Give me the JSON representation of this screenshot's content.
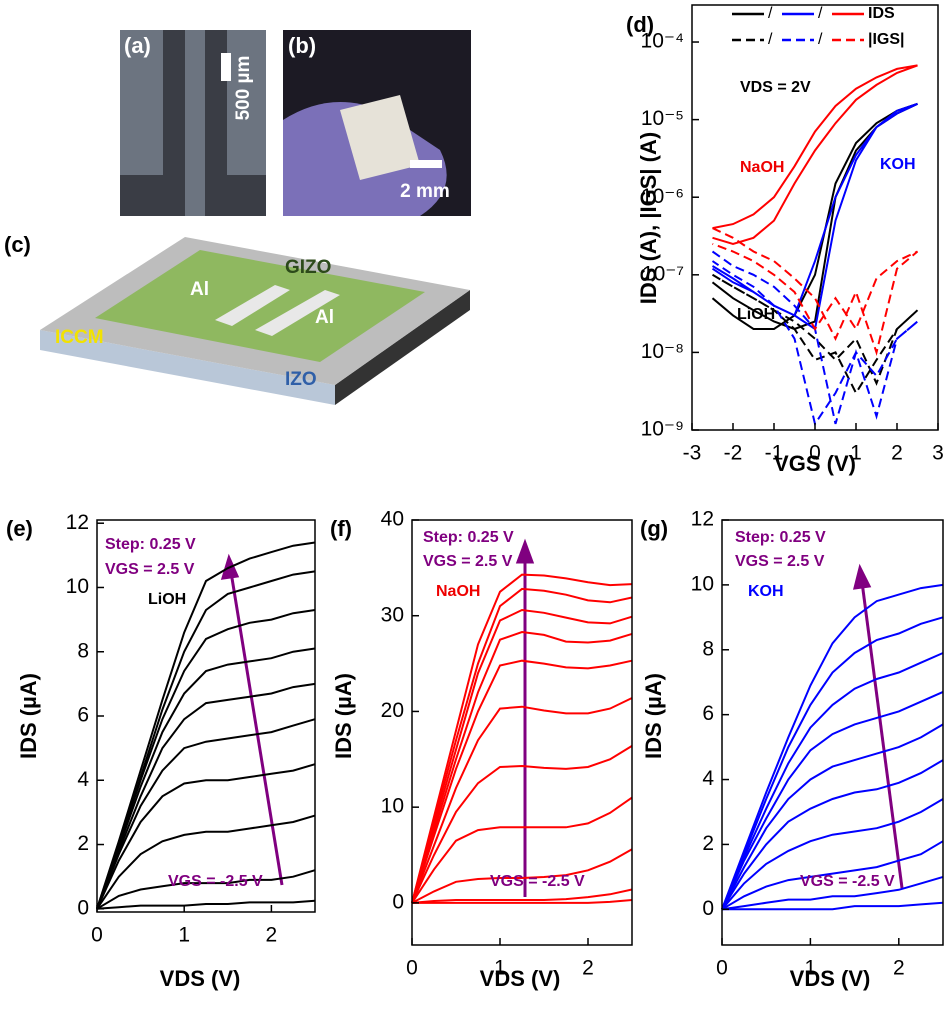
{
  "images": [
    {
      "label": "(a)",
      "scale": "500 µm"
    },
    {
      "label": "(b)",
      "scale": "2 mm"
    },
    {
      "label": "(c)",
      "layers": [
        "GIZO",
        "Al",
        "Al",
        "ICCM",
        "IZO"
      ]
    }
  ],
  "chart_data": [
    {
      "type": "line",
      "panel": "(d)",
      "log_y": true,
      "x": [
        -2.5,
        -2,
        -1.5,
        -1,
        -0.5,
        0,
        0.5,
        1,
        1.5,
        2,
        2.5,
        2,
        1.5,
        1,
        0.5,
        0,
        -0.5,
        -1,
        -1.5,
        -2,
        -2.5
      ],
      "xlim": [
        -3,
        3
      ],
      "xticks": [
        -3,
        -2,
        -1,
        0,
        1,
        2,
        3
      ],
      "ylim": [
        1e-09,
        0.0003
      ],
      "yticks": [
        {
          "value": 1e-09,
          "label": "10⁻⁹"
        },
        {
          "value": 1e-08,
          "label": "10⁻⁸"
        },
        {
          "value": 1e-07,
          "label": "10⁻⁷"
        },
        {
          "value": 1e-06,
          "label": "10⁻⁶"
        },
        {
          "value": 1e-05,
          "label": "10⁻⁵"
        },
        {
          "value": 0.0001,
          "label": "10⁻⁴"
        }
      ],
      "xlabel": "VGS (V)",
      "ylabel": "IDS (A), |IGS| (A)",
      "legend_separator": "/",
      "annotations": [
        "VDS = 2V",
        "NaOH",
        "KOH",
        "LiOH"
      ],
      "series": [
        {
          "color": "#000000",
          "dash": false,
          "values": [
            8e-08,
            5e-08,
            3.5e-08,
            2.5e-08,
            2e-08,
            2.5e-08,
            1e-06,
            4e-06,
            8e-06,
            1.2e-05,
            1.6e-05,
            1.3e-05,
            9e-06,
            5e-06,
            1.5e-06,
            1e-07,
            3e-08,
            2e-08,
            2e-08,
            3e-08,
            5e-08
          ]
        },
        {
          "color": "#0000ff",
          "dash": false,
          "values": [
            1.3e-07,
            9e-08,
            6e-08,
            4e-08,
            3e-08,
            2e-08,
            5e-07,
            3e-06,
            8e-06,
            1.2e-05,
            1.6e-05,
            1.3e-05,
            8e-06,
            3.5e-06,
            1e-06,
            1.5e-07,
            3e-08,
            4e-08,
            6e-08,
            8e-08,
            1.2e-07
          ]
        },
        {
          "name": "IDS",
          "color": "#ff0000",
          "dash": false,
          "values": [
            3e-07,
            2.5e-07,
            3e-07,
            5e-07,
            1.5e-06,
            4e-06,
            9e-06,
            1.8e-05,
            2.8e-05,
            4e-05,
            5e-05,
            4.5e-05,
            3.5e-05,
            2.5e-05,
            1.5e-05,
            7e-06,
            2.5e-06,
            1e-06,
            6e-07,
            4.5e-07,
            4e-07
          ]
        },
        {
          "color": "#000000",
          "dash": true,
          "values": [
            1e-07,
            7e-08,
            5e-08,
            3.5e-08,
            2.5e-08,
            1.5e-08,
            8e-09,
            1.5e-08,
            4e-09,
            2e-08,
            3.5e-08,
            2e-08,
            8e-09,
            3e-09,
            1e-08,
            8e-09,
            2e-08,
            3.5e-08,
            5e-08,
            7e-08,
            1e-07
          ]
        },
        {
          "color": "#0000ff",
          "dash": true,
          "values": [
            2e-07,
            1.3e-07,
            1e-07,
            7e-08,
            4e-08,
            2e-08,
            1.2e-09,
            1e-08,
            1.5e-09,
            1.5e-08,
            2.5e-08,
            1.5e-08,
            5e-09,
            1e-08,
            3e-09,
            1.2e-09,
            1.5e-08,
            4e-08,
            7e-08,
            1e-07,
            1.5e-07
          ]
        },
        {
          "name": "|IGS|",
          "color": "#ff0000",
          "dash": true,
          "values": [
            4e-07,
            3e-07,
            2e-07,
            1.5e-07,
            9e-08,
            5e-08,
            1.5e-08,
            6e-08,
            1e-08,
            1.2e-07,
            2e-07,
            1.5e-07,
            9e-08,
            2e-08,
            5e-08,
            2e-08,
            6e-08,
            1e-07,
            1.5e-07,
            2e-07,
            2.5e-07
          ]
        }
      ]
    },
    {
      "type": "line",
      "panel": "(e)",
      "x": [
        0,
        0.25,
        0.5,
        0.75,
        1,
        1.25,
        1.5,
        1.75,
        2,
        2.25,
        2.5
      ],
      "xlim": [
        0,
        2.5
      ],
      "xticks": [
        0,
        1,
        2
      ],
      "ylim": [
        -0.1,
        12.1
      ],
      "yticks": [
        0,
        2,
        4,
        6,
        8,
        10,
        12
      ],
      "xlabel": "VDS (V)",
      "ylabel": "IDS (µA)",
      "annotations": [
        "Step: 0.25 V",
        "VGS = 2.5 V",
        "LiOH",
        "VGS = -2.5 V"
      ],
      "series": [
        {
          "color": "#000000",
          "values": [
            0,
            2.1,
            4.3,
            6.5,
            8.6,
            10.2,
            10.6,
            10.9,
            11.1,
            11.3,
            11.4
          ]
        },
        {
          "color": "#000000",
          "values": [
            0,
            2.0,
            4.1,
            6.2,
            8.0,
            9.3,
            9.8,
            10.0,
            10.2,
            10.4,
            10.5
          ]
        },
        {
          "color": "#000000",
          "values": [
            0,
            2.0,
            4.0,
            5.9,
            7.4,
            8.4,
            8.7,
            8.9,
            9.0,
            9.2,
            9.3
          ]
        },
        {
          "color": "#000000",
          "values": [
            0,
            1.9,
            3.8,
            5.5,
            6.7,
            7.4,
            7.6,
            7.7,
            7.8,
            8.0,
            8.1
          ]
        },
        {
          "color": "#000000",
          "values": [
            0,
            1.8,
            3.5,
            5.0,
            5.9,
            6.4,
            6.5,
            6.6,
            6.7,
            6.9,
            7.0
          ]
        },
        {
          "color": "#000000",
          "values": [
            0,
            1.7,
            3.2,
            4.3,
            5.0,
            5.2,
            5.3,
            5.4,
            5.5,
            5.7,
            5.9
          ]
        },
        {
          "color": "#000000",
          "values": [
            0,
            1.5,
            2.7,
            3.5,
            3.9,
            4.0,
            4.0,
            4.1,
            4.2,
            4.3,
            4.5
          ]
        },
        {
          "color": "#000000",
          "values": [
            0,
            1.0,
            1.7,
            2.1,
            2.3,
            2.4,
            2.4,
            2.5,
            2.6,
            2.7,
            2.9
          ]
        },
        {
          "color": "#000000",
          "values": [
            0,
            0.4,
            0.6,
            0.7,
            0.8,
            0.8,
            0.8,
            0.9,
            0.9,
            1.0,
            1.2
          ]
        },
        {
          "color": "#000000",
          "values": [
            0,
            0.05,
            0.1,
            0.1,
            0.1,
            0.15,
            0.15,
            0.2,
            0.2,
            0.2,
            0.25
          ]
        }
      ]
    },
    {
      "type": "line",
      "panel": "(f)",
      "x": [
        0,
        0.25,
        0.5,
        0.75,
        1,
        1.25,
        1.5,
        1.75,
        2,
        2.25,
        2.5
      ],
      "xlim": [
        0,
        2.5
      ],
      "xticks": [
        0,
        1,
        2
      ],
      "ylim": [
        -4.4,
        40
      ],
      "yticks": [
        0,
        10,
        20,
        30,
        40
      ],
      "xlabel": "VDS (V)",
      "ylabel": "IDS (µA)",
      "annotations": [
        "Step: 0.25 V",
        "VGS = 2.5 V",
        "NaOH",
        "VGS = -2.5 V"
      ],
      "series": [
        {
          "color": "#ff0000",
          "values": [
            0,
            9,
            18,
            27,
            32.5,
            34.3,
            34.2,
            33.9,
            33.5,
            33.2,
            33.3
          ]
        },
        {
          "color": "#ff0000",
          "values": [
            0,
            8.5,
            17,
            25,
            31,
            32.8,
            32.6,
            32.2,
            31.6,
            31.4,
            31.9
          ]
        },
        {
          "color": "#ff0000",
          "values": [
            0,
            8,
            16,
            24,
            29.5,
            30.6,
            30.3,
            29.8,
            29.3,
            29.2,
            29.9
          ]
        },
        {
          "color": "#ff0000",
          "values": [
            0,
            7.5,
            15,
            22,
            27.5,
            28.3,
            28,
            27.3,
            27.2,
            27.4,
            28.1
          ]
        },
        {
          "color": "#ff0000",
          "values": [
            0,
            7,
            14,
            20,
            24.8,
            25.3,
            25,
            24.6,
            24.5,
            24.8,
            25.3
          ]
        },
        {
          "color": "#ff0000",
          "values": [
            0,
            6,
            12,
            17,
            20.3,
            20.5,
            20.1,
            19.8,
            19.8,
            20.3,
            21.4
          ]
        },
        {
          "color": "#ff0000",
          "values": [
            0,
            5,
            9.5,
            12.5,
            14.2,
            14.3,
            14.1,
            14,
            14.2,
            15,
            16.4
          ]
        },
        {
          "color": "#ff0000",
          "values": [
            0,
            3.5,
            6.5,
            7.6,
            7.9,
            7.9,
            7.9,
            7.9,
            8.3,
            9.4,
            11
          ]
        },
        {
          "color": "#ff0000",
          "values": [
            0,
            1.2,
            2.2,
            2.5,
            2.6,
            2.6,
            2.7,
            2.9,
            3.4,
            4.3,
            5.6
          ]
        },
        {
          "color": "#ff0000",
          "values": [
            0,
            0.2,
            0.3,
            0.3,
            0.3,
            0.3,
            0.3,
            0.4,
            0.6,
            0.9,
            1.4
          ]
        },
        {
          "color": "#ff0000",
          "values": [
            0,
            0,
            0,
            0,
            0,
            0,
            0,
            0,
            0,
            0.1,
            0.3
          ]
        }
      ]
    },
    {
      "type": "line",
      "panel": "(g)",
      "x": [
        0,
        0.25,
        0.5,
        0.75,
        1,
        1.25,
        1.5,
        1.75,
        2,
        2.25,
        2.5
      ],
      "xlim": [
        0,
        2.5
      ],
      "xticks": [
        0,
        1,
        2
      ],
      "ylim": [
        -1.1,
        12
      ],
      "yticks": [
        0,
        2,
        4,
        6,
        8,
        10,
        12
      ],
      "xlabel": "VDS (V)",
      "ylabel": "IDS (µA)",
      "annotations": [
        "Step: 0.25 V",
        "VGS = 2.5 V",
        "KOH",
        "VGS = -2.5 V"
      ],
      "series": [
        {
          "color": "#0000ff",
          "values": [
            0,
            1.8,
            3.6,
            5.3,
            6.9,
            8.2,
            9.0,
            9.5,
            9.7,
            9.9,
            10.0
          ]
        },
        {
          "color": "#0000ff",
          "values": [
            0,
            1.7,
            3.4,
            5.0,
            6.3,
            7.3,
            7.9,
            8.3,
            8.5,
            8.8,
            9.0
          ]
        },
        {
          "color": "#0000ff",
          "values": [
            0,
            1.6,
            3.1,
            4.5,
            5.6,
            6.3,
            6.8,
            7.1,
            7.3,
            7.6,
            7.9
          ]
        },
        {
          "color": "#0000ff",
          "values": [
            0,
            1.5,
            2.8,
            4.0,
            4.9,
            5.4,
            5.7,
            5.9,
            6.1,
            6.4,
            6.7
          ]
        },
        {
          "color": "#0000ff",
          "values": [
            0,
            1.3,
            2.5,
            3.4,
            4.0,
            4.4,
            4.6,
            4.8,
            5.0,
            5.3,
            5.7
          ]
        },
        {
          "color": "#0000ff",
          "values": [
            0,
            1.1,
            2.0,
            2.7,
            3.1,
            3.4,
            3.6,
            3.7,
            3.9,
            4.2,
            4.6
          ]
        },
        {
          "color": "#0000ff",
          "values": [
            0,
            0.8,
            1.4,
            1.8,
            2.1,
            2.3,
            2.4,
            2.5,
            2.7,
            3.0,
            3.4
          ]
        },
        {
          "color": "#0000ff",
          "values": [
            0,
            0.4,
            0.7,
            0.9,
            1.0,
            1.1,
            1.2,
            1.3,
            1.5,
            1.7,
            2.1
          ]
        },
        {
          "color": "#0000ff",
          "values": [
            0,
            0.1,
            0.2,
            0.3,
            0.3,
            0.4,
            0.4,
            0.5,
            0.6,
            0.8,
            1.0
          ]
        },
        {
          "color": "#0000ff",
          "values": [
            0,
            0,
            0,
            0,
            0,
            0,
            0.1,
            0.1,
            0.1,
            0.15,
            0.2
          ]
        }
      ]
    }
  ]
}
